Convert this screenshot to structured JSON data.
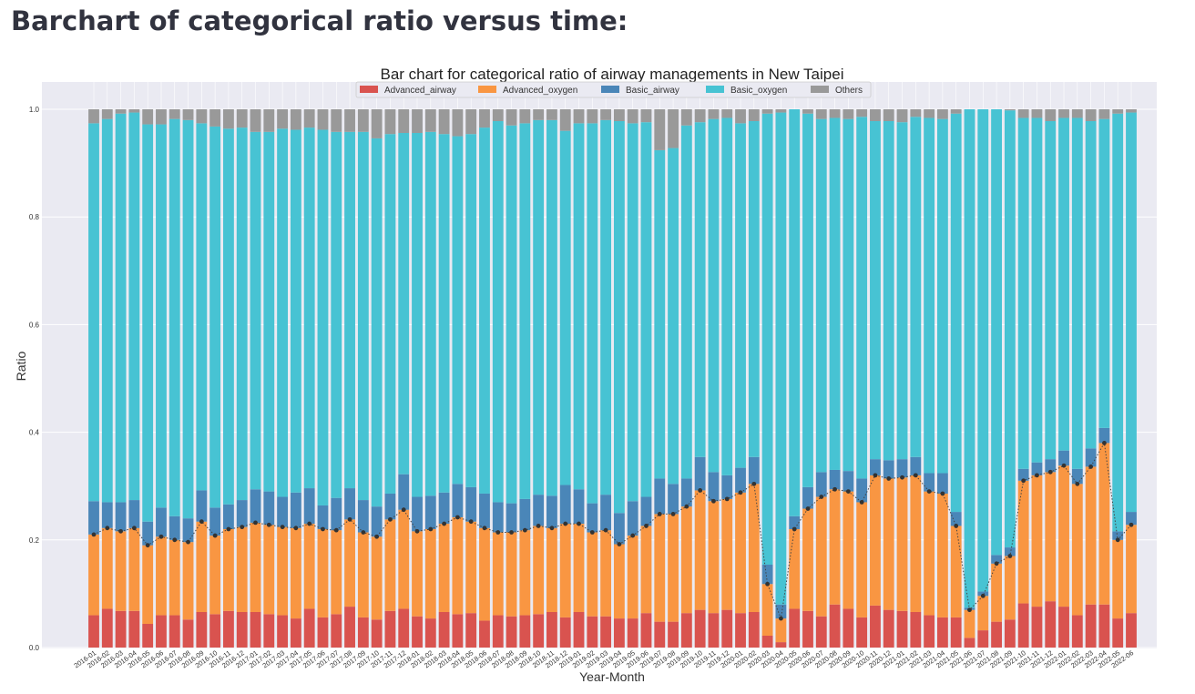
{
  "page": {
    "heading": "Barchart of categorical ratio versus time:"
  },
  "colors": {
    "Advanced_airway": "#d9534f",
    "Advanced_oxygen": "#f99642",
    "Basic_airway": "#4a86b8",
    "Basic_oxygen": "#47c3d3",
    "Others": "#999999",
    "plot_background": "#eaeaf2",
    "line": "#444444"
  },
  "chart_data": {
    "type": "bar",
    "stacked": true,
    "normalized": true,
    "title": "Bar chart for categorical ratio of airway managements in New Taipei",
    "xlabel": "Year-Month",
    "ylabel": "Ratio",
    "ylim": [
      0.0,
      1.0
    ],
    "yticks": [
      "0.0",
      "0.2",
      "0.4",
      "0.6",
      "0.8",
      "1.0"
    ],
    "grid": true,
    "legend_position": "top-center",
    "categories": [
      "2016-01",
      "2016-02",
      "2016-03",
      "2016-04",
      "2016-05",
      "2016-06",
      "2016-07",
      "2016-08",
      "2016-09",
      "2016-10",
      "2016-11",
      "2016-12",
      "2017-01",
      "2017-02",
      "2017-03",
      "2017-04",
      "2017-05",
      "2017-06",
      "2017-07",
      "2017-08",
      "2017-09",
      "2017-10",
      "2017-11",
      "2017-12",
      "2018-01",
      "2018-02",
      "2018-03",
      "2018-04",
      "2018-05",
      "2018-06",
      "2018-07",
      "2018-08",
      "2018-09",
      "2018-10",
      "2018-11",
      "2018-12",
      "2019-01",
      "2019-02",
      "2019-03",
      "2019-04",
      "2019-05",
      "2019-06",
      "2019-07",
      "2019-08",
      "2019-09",
      "2019-10",
      "2019-11",
      "2019-12",
      "2020-01",
      "2020-02",
      "2020-03",
      "2020-04",
      "2020-05",
      "2020-06",
      "2020-07",
      "2020-08",
      "2020-09",
      "2020-10",
      "2020-11",
      "2020-12",
      "2021-01",
      "2021-02",
      "2021-03",
      "2021-04",
      "2021-05",
      "2021-06",
      "2021-07",
      "2021-08",
      "2021-09",
      "2021-10",
      "2021-11",
      "2021-12",
      "2022-01",
      "2022-02",
      "2022-03",
      "2022-04",
      "2022-05",
      "2022-06"
    ],
    "series": [
      {
        "name": "Advanced_airway",
        "values": [
          0.06,
          0.072,
          0.068,
          0.068,
          0.044,
          0.06,
          0.06,
          0.052,
          0.066,
          0.062,
          0.068,
          0.066,
          0.066,
          0.062,
          0.06,
          0.054,
          0.072,
          0.056,
          0.062,
          0.076,
          0.056,
          0.052,
          0.068,
          0.072,
          0.058,
          0.054,
          0.066,
          0.062,
          0.064,
          0.05,
          0.06,
          0.058,
          0.06,
          0.062,
          0.066,
          0.056,
          0.066,
          0.058,
          0.058,
          0.054,
          0.054,
          0.064,
          0.048,
          0.048,
          0.064,
          0.07,
          0.064,
          0.07,
          0.064,
          0.066,
          0.022,
          0.01,
          0.072,
          0.068,
          0.058,
          0.08,
          0.072,
          0.056,
          0.078,
          0.07,
          0.068,
          0.066,
          0.06,
          0.056,
          0.056,
          0.018,
          0.032,
          0.048,
          0.052,
          0.082,
          0.076,
          0.086,
          0.076,
          0.06,
          0.08,
          0.08,
          0.054,
          0.064
        ]
      },
      {
        "name": "Advanced_oxygen",
        "values": [
          0.15,
          0.15,
          0.148,
          0.154,
          0.146,
          0.146,
          0.14,
          0.144,
          0.168,
          0.146,
          0.152,
          0.158,
          0.166,
          0.166,
          0.164,
          0.168,
          0.158,
          0.164,
          0.156,
          0.162,
          0.158,
          0.154,
          0.17,
          0.184,
          0.158,
          0.166,
          0.164,
          0.18,
          0.17,
          0.172,
          0.154,
          0.156,
          0.158,
          0.164,
          0.156,
          0.174,
          0.164,
          0.156,
          0.16,
          0.138,
          0.154,
          0.162,
          0.2,
          0.2,
          0.198,
          0.222,
          0.208,
          0.206,
          0.224,
          0.238,
          0.096,
          0.044,
          0.148,
          0.19,
          0.222,
          0.214,
          0.218,
          0.214,
          0.242,
          0.244,
          0.248,
          0.254,
          0.23,
          0.23,
          0.17,
          0.052,
          0.064,
          0.108,
          0.118,
          0.228,
          0.244,
          0.24,
          0.262,
          0.244,
          0.256,
          0.3,
          0.146,
          0.164
        ]
      },
      {
        "name": "Basic_airway",
        "values": [
          0.062,
          0.048,
          0.054,
          0.052,
          0.044,
          0.054,
          0.044,
          0.044,
          0.058,
          0.052,
          0.046,
          0.05,
          0.062,
          0.062,
          0.056,
          0.066,
          0.066,
          0.044,
          0.06,
          0.058,
          0.06,
          0.056,
          0.048,
          0.066,
          0.064,
          0.062,
          0.058,
          0.062,
          0.064,
          0.064,
          0.056,
          0.054,
          0.058,
          0.058,
          0.06,
          0.072,
          0.064,
          0.054,
          0.066,
          0.058,
          0.064,
          0.054,
          0.066,
          0.056,
          0.052,
          0.062,
          0.054,
          0.044,
          0.046,
          0.05,
          0.036,
          0.026,
          0.024,
          0.04,
          0.046,
          0.036,
          0.038,
          0.044,
          0.03,
          0.034,
          0.034,
          0.034,
          0.034,
          0.038,
          0.026,
          0.004,
          0.008,
          0.016,
          0.016,
          0.022,
          0.024,
          0.024,
          0.028,
          0.028,
          0.034,
          0.028,
          0.016,
          0.024
        ]
      },
      {
        "name": "Basic_oxygen",
        "values": [
          0.702,
          0.712,
          0.722,
          0.72,
          0.738,
          0.712,
          0.738,
          0.74,
          0.682,
          0.708,
          0.698,
          0.692,
          0.664,
          0.668,
          0.684,
          0.674,
          0.67,
          0.698,
          0.68,
          0.662,
          0.684,
          0.684,
          0.668,
          0.634,
          0.676,
          0.676,
          0.666,
          0.646,
          0.656,
          0.68,
          0.708,
          0.702,
          0.698,
          0.696,
          0.698,
          0.658,
          0.68,
          0.706,
          0.696,
          0.728,
          0.702,
          0.696,
          0.61,
          0.624,
          0.656,
          0.622,
          0.656,
          0.664,
          0.64,
          0.624,
          0.838,
          0.914,
          0.756,
          0.694,
          0.656,
          0.654,
          0.654,
          0.672,
          0.628,
          0.63,
          0.626,
          0.632,
          0.66,
          0.658,
          0.74,
          0.926,
          0.896,
          0.828,
          0.812,
          0.652,
          0.64,
          0.628,
          0.618,
          0.652,
          0.608,
          0.574,
          0.776,
          0.742
        ]
      },
      {
        "name": "Others",
        "values": [
          0.026,
          0.018,
          0.008,
          0.006,
          0.028,
          0.028,
          0.018,
          0.02,
          0.026,
          0.032,
          0.036,
          0.034,
          0.042,
          0.042,
          0.036,
          0.038,
          0.034,
          0.038,
          0.042,
          0.042,
          0.042,
          0.054,
          0.046,
          0.044,
          0.044,
          0.042,
          0.046,
          0.05,
          0.046,
          0.034,
          0.022,
          0.03,
          0.026,
          0.02,
          0.02,
          0.04,
          0.026,
          0.026,
          0.02,
          0.022,
          0.026,
          0.024,
          0.076,
          0.072,
          0.03,
          0.024,
          0.018,
          0.016,
          0.026,
          0.022,
          0.008,
          0.006,
          0.0,
          0.008,
          0.018,
          0.016,
          0.018,
          0.014,
          0.022,
          0.022,
          0.024,
          0.014,
          0.016,
          0.018,
          0.008,
          0.0,
          0.0,
          0.0,
          0.002,
          0.016,
          0.016,
          0.022,
          0.016,
          0.016,
          0.022,
          0.018,
          0.008,
          0.006
        ]
      }
    ],
    "line_overlay": {
      "description": "dotted line with markers at Advanced_airway + Advanced_oxygen",
      "style": "dotted",
      "marker": "circle"
    }
  }
}
